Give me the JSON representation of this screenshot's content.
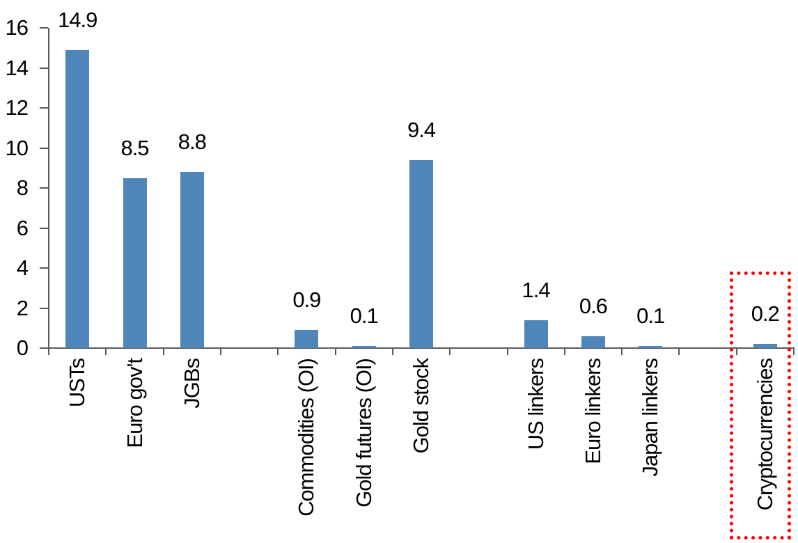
{
  "chart_data": {
    "type": "bar",
    "title": "",
    "categories": [
      "USTs",
      "Euro gov't",
      "JGBs",
      "",
      "Commodities (OI)",
      "Gold futures (OI)",
      "Gold stock",
      "",
      "US linkers",
      "Euro linkers",
      "Japan linkers",
      "",
      "Cryptocurrencies"
    ],
    "values": [
      14.9,
      8.5,
      8.8,
      null,
      0.9,
      0.1,
      9.4,
      null,
      1.4,
      0.6,
      0.1,
      null,
      0.2
    ],
    "value_labels": [
      "14.9",
      "8.5",
      "8.8",
      null,
      "0.9",
      "0.1",
      "9.4",
      null,
      "1.4",
      "0.6",
      "0.1",
      null,
      "0.2"
    ],
    "y_axis": {
      "min": 0,
      "max": 16,
      "tick_interval": 2,
      "tick_labels": [
        "0",
        "2",
        "4",
        "6",
        "8",
        "10",
        "12",
        "14",
        "16"
      ]
    },
    "x_axis": {
      "label_rotation_degrees": 90
    },
    "grid": false,
    "legend": false,
    "colors": {
      "bar": "#4e86ba",
      "axis": "#595959",
      "text": "#000000",
      "highlight_box": "#ff0000",
      "background": "#ffffff"
    },
    "highlight": {
      "category": "Cryptocurrencies",
      "style": "dotted-rectangle"
    }
  }
}
